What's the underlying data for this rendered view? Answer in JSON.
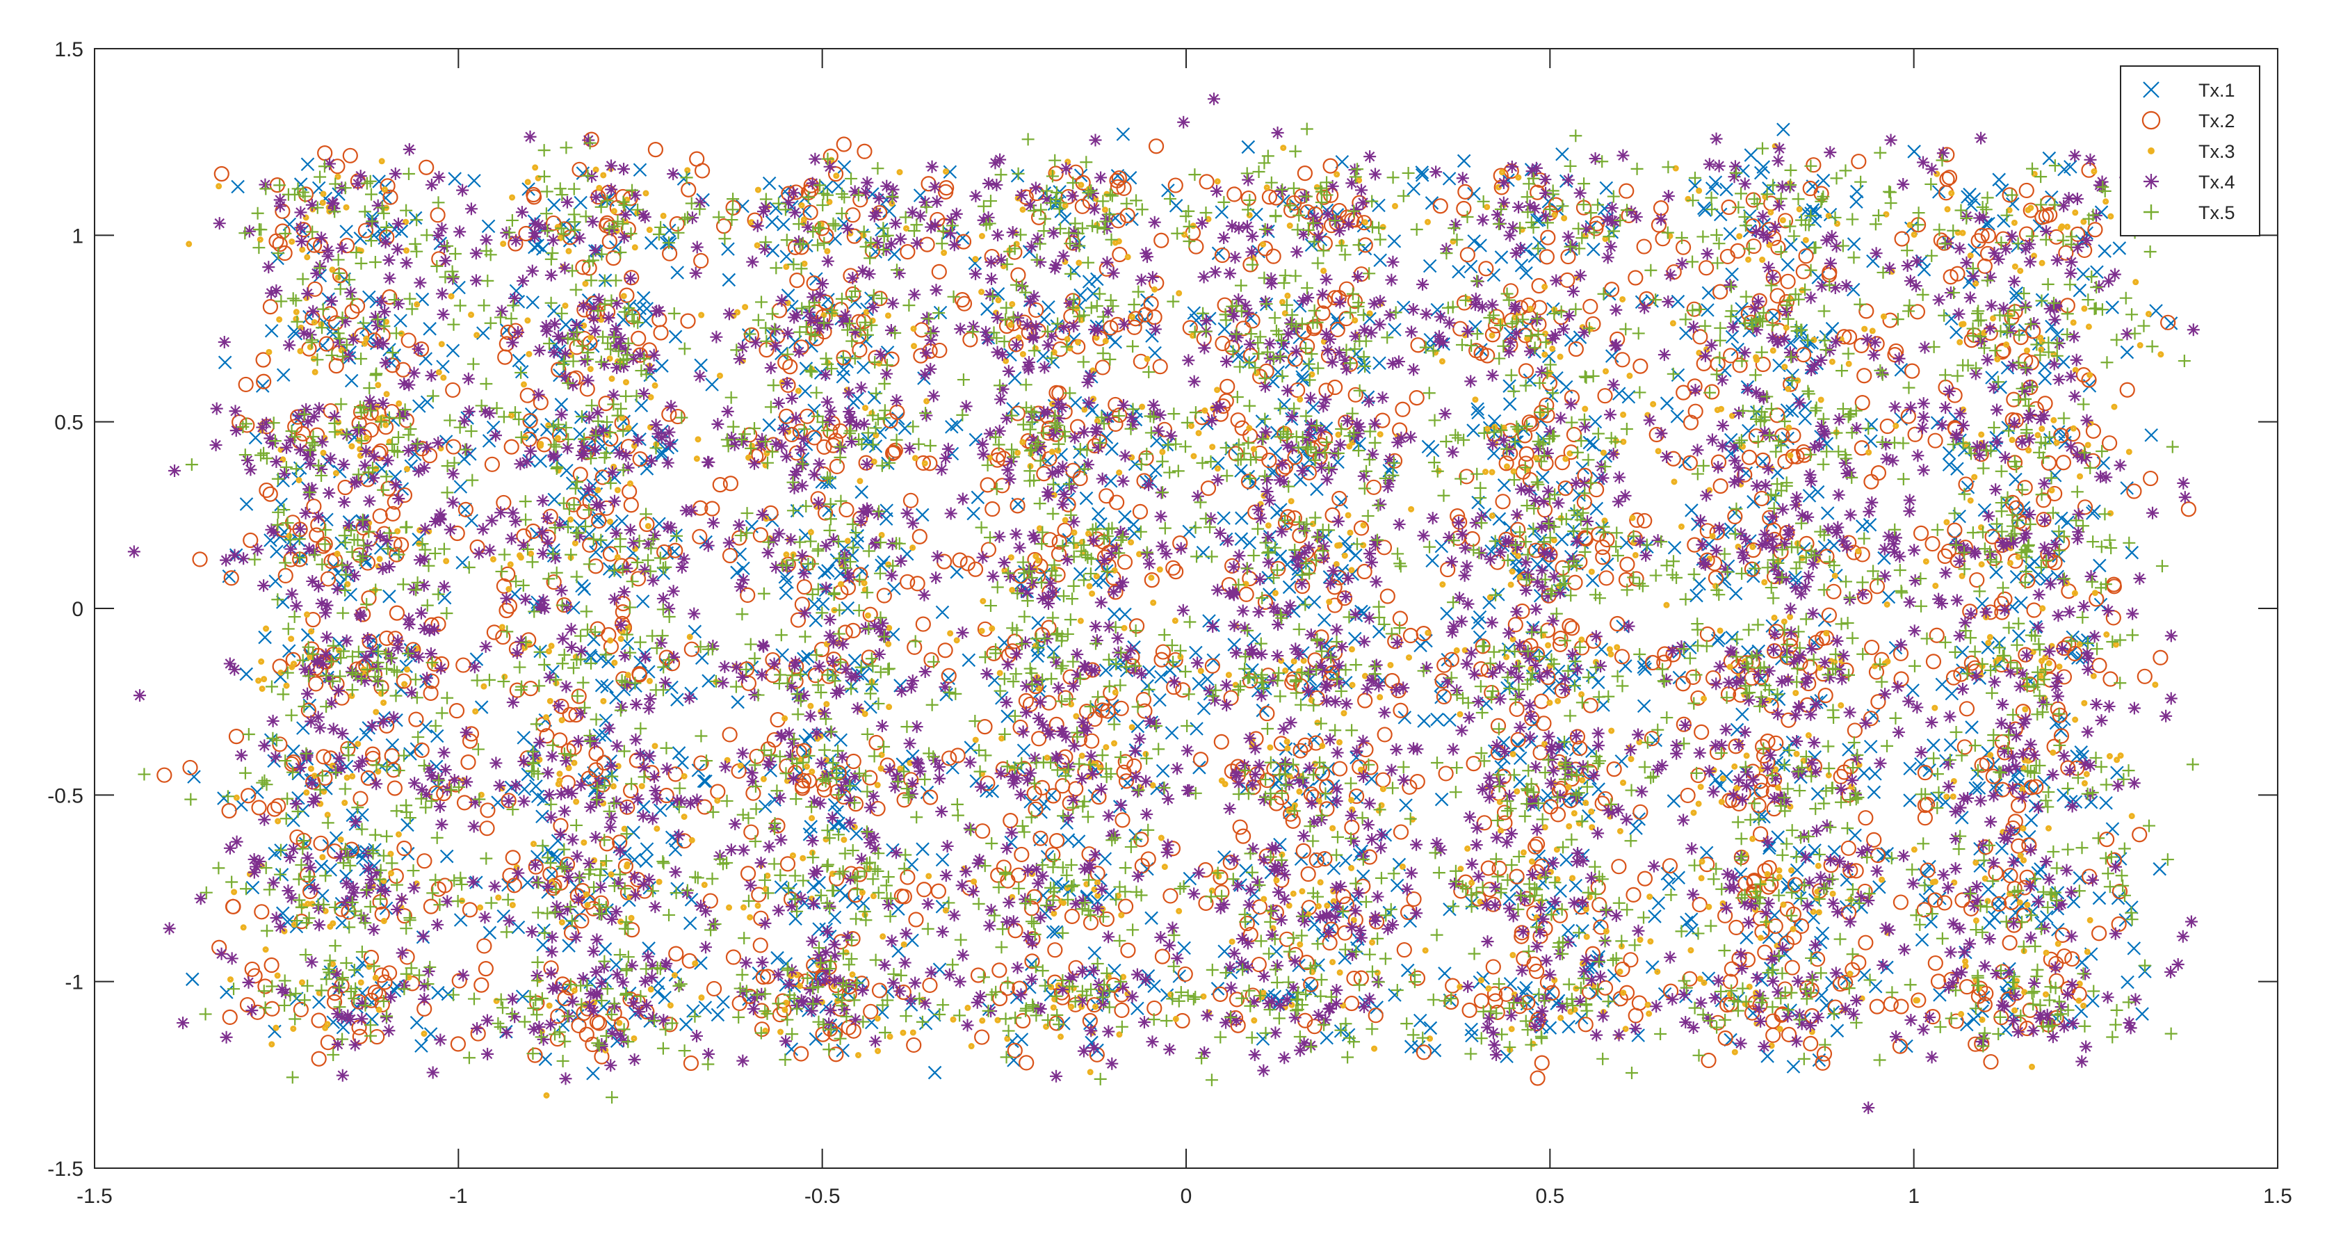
{
  "chart_data": {
    "type": "scatter",
    "title": "",
    "xlabel": "",
    "ylabel": "",
    "xlim": [
      -1.5,
      1.5
    ],
    "ylim": [
      -1.5,
      1.5
    ],
    "x_ticks": [
      -1.5,
      -1,
      -0.5,
      0,
      0.5,
      1,
      1.5
    ],
    "y_ticks": [
      -1.5,
      -1,
      -0.5,
      0,
      0.5,
      1,
      1.5
    ],
    "x_tick_labels": [
      "-1.5",
      "-1",
      "-0.5",
      "0",
      "0.5",
      "1",
      "1.5"
    ],
    "y_tick_labels": [
      "-1.5",
      "-1",
      "-0.5",
      "0",
      "0.5",
      "1",
      "1.5"
    ],
    "grid": false,
    "legend_position": "top-right",
    "constellation": {
      "i_levels": [
        -1.15,
        -0.82,
        -0.49,
        -0.16,
        0.16,
        0.49,
        0.82,
        1.15
      ],
      "q_levels": [
        -1.05,
        -0.75,
        -0.45,
        -0.15,
        0.15,
        0.45,
        0.75,
        1.05
      ]
    },
    "series": [
      {
        "name": "Tx.1",
        "marker": "x",
        "color": "#0072BD"
      },
      {
        "name": "Tx.2",
        "marker": "o",
        "color": "#D95319"
      },
      {
        "name": "Tx.3",
        "marker": ".",
        "color": "#EDB120"
      },
      {
        "name": "Tx.4",
        "marker": "*",
        "color": "#7E2F8E"
      },
      {
        "name": "Tx.5",
        "marker": "+",
        "color": "#77AC30"
      }
    ]
  }
}
